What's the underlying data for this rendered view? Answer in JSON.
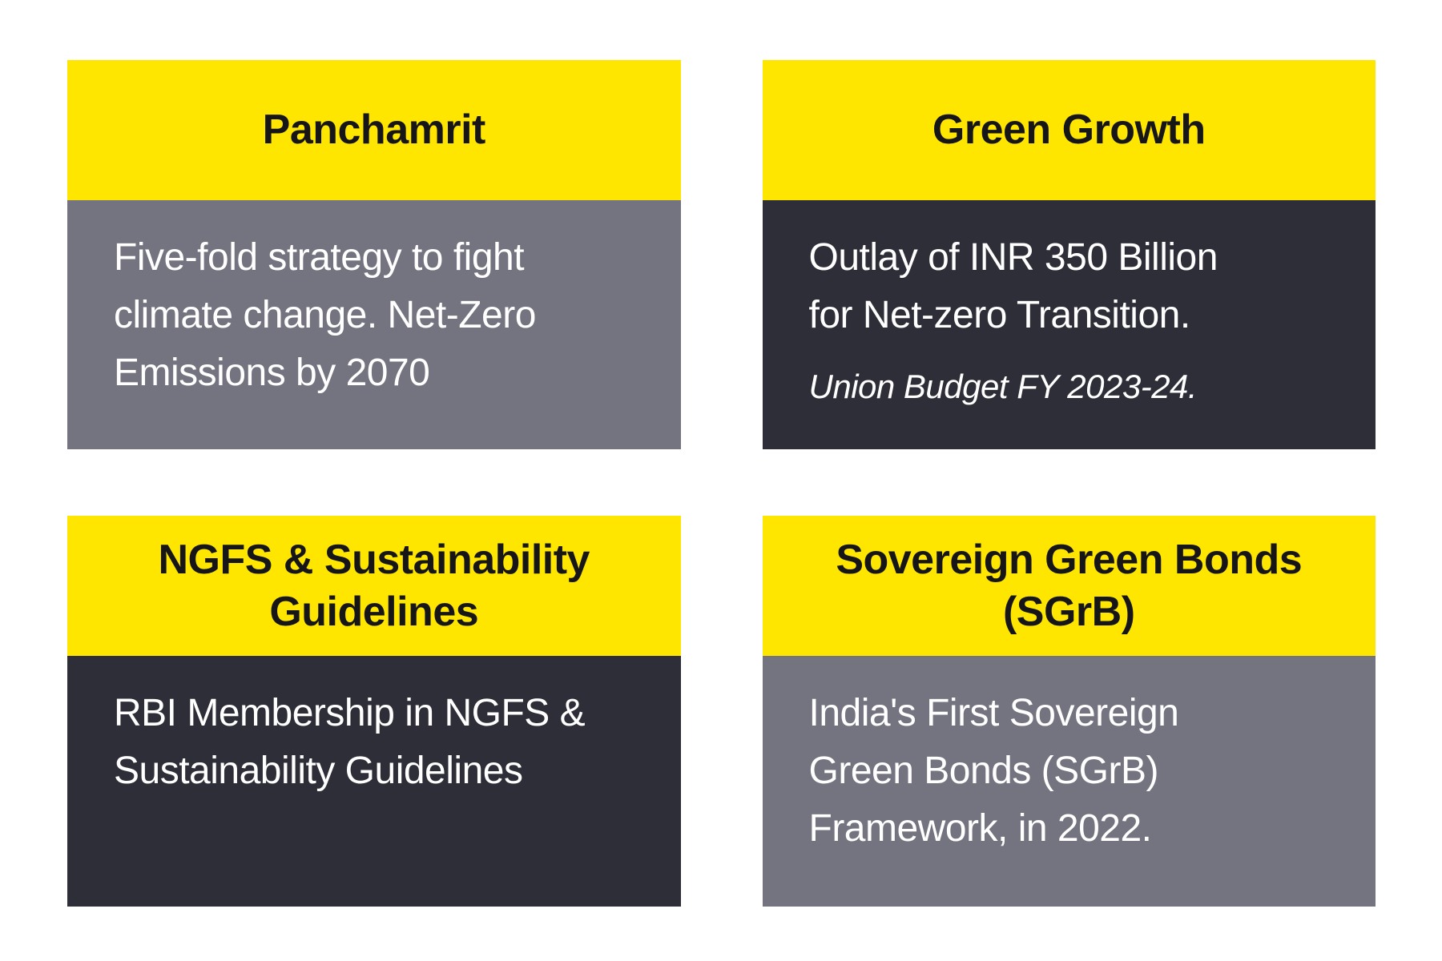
{
  "colors": {
    "accent_yellow": "#ffe600",
    "gray_panel": "#747480",
    "dark_panel": "#2e2e38",
    "title_text": "#161618",
    "body_text": "#ffffff",
    "page_bg": "#ffffff"
  },
  "cards": [
    {
      "title": "Panchamrit",
      "body": "Five-fold strategy to fight\nclimate change. Net-Zero\nEmissions by 2070",
      "panel": "gray"
    },
    {
      "title": "Green Growth",
      "body": "Outlay of INR 350 Billion\nfor Net-zero Transition.",
      "note": "Union Budget FY 2023-24.",
      "panel": "dark"
    },
    {
      "title": "NGFS & Sustainability\nGuidelines",
      "body": "RBI Membership in NGFS &\nSustainability Guidelines",
      "panel": "dark"
    },
    {
      "title": "Sovereign Green Bonds\n(SGrB)",
      "body": "India's First Sovereign\nGreen Bonds (SGrB)\nFramework, in 2022.",
      "panel": "gray"
    }
  ]
}
